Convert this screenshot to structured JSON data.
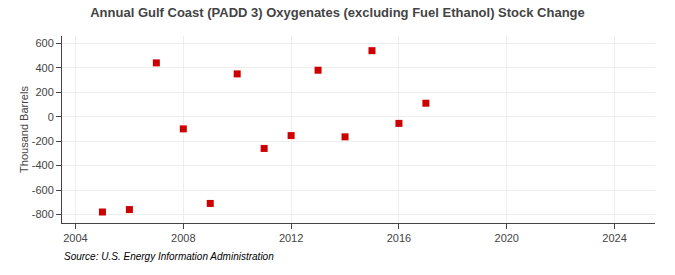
{
  "chart_data": {
    "type": "scatter",
    "title": "Annual Gulf Coast (PADD 3) Oxygenates (excluding Fuel Ethanol) Stock Change",
    "ylabel": "Thousand Barrels",
    "annotations": [
      "Source: U.S. Energy Information Administration"
    ],
    "x": [
      2005,
      2006,
      2007,
      2008,
      2009,
      2010,
      2011,
      2012,
      2013,
      2014,
      2015,
      2016,
      2017
    ],
    "values": [
      -780,
      -760,
      440,
      -100,
      -710,
      350,
      -260,
      -155,
      380,
      -165,
      540,
      -55,
      110
    ],
    "color": "#cc0000",
    "marker": "square",
    "xlim": [
      2003.5,
      2025.5
    ],
    "ylim": [
      -870,
      660
    ],
    "xticks": [
      2004,
      2008,
      2012,
      2016,
      2020,
      2024
    ],
    "yticks": [
      -800,
      -600,
      -400,
      -200,
      0,
      200,
      400,
      600
    ],
    "grid": true
  }
}
